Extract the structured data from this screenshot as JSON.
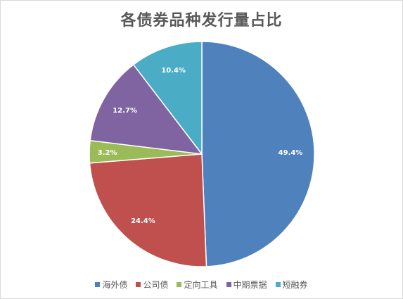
{
  "chart_data": {
    "type": "pie",
    "title": "各债券品种发行量占比",
    "categories": [
      "海外债",
      "公司债",
      "定向工具",
      "中期票据",
      "短融券"
    ],
    "values": [
      49.4,
      24.4,
      3.2,
      12.7,
      10.4
    ],
    "labels": [
      "49.4%",
      "24.4%",
      "3.2%",
      "12.7%",
      "10.4%"
    ],
    "colors": [
      "#4f81bd",
      "#c0504d",
      "#9bbb59",
      "#8064a2",
      "#4bacc6"
    ],
    "start_angle": "12 o'clock",
    "direction": "clockwise",
    "legend_position": "bottom"
  }
}
